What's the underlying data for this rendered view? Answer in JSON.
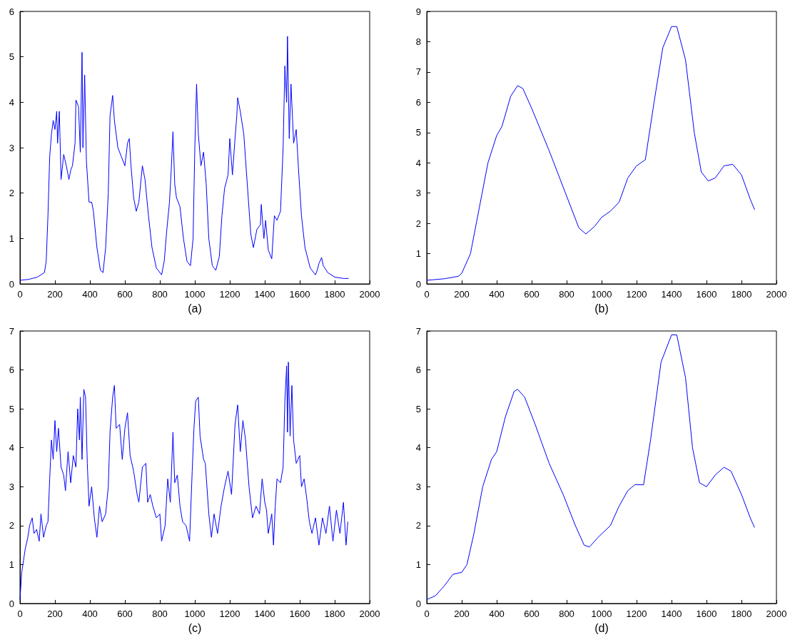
{
  "chart_data": [
    {
      "type": "line",
      "xlabel": "(a)",
      "color": "#0000ff",
      "xlim": [
        0,
        2000
      ],
      "xticks": [
        0,
        200,
        400,
        600,
        800,
        1000,
        1200,
        1400,
        1600,
        1800,
        2000
      ],
      "ylim": [
        0,
        6
      ],
      "yticks": [
        0,
        1,
        2,
        3,
        4,
        5,
        6
      ],
      "x": [
        0,
        50,
        100,
        140,
        150,
        160,
        170,
        180,
        190,
        200,
        210,
        215,
        225,
        235,
        250,
        265,
        280,
        290,
        300,
        315,
        320,
        335,
        345,
        355,
        360,
        370,
        380,
        395,
        410,
        420,
        440,
        460,
        475,
        490,
        505,
        515,
        525,
        530,
        540,
        560,
        580,
        600,
        615,
        625,
        635,
        650,
        665,
        680,
        700,
        715,
        735,
        755,
        780,
        810,
        825,
        840,
        855,
        865,
        875,
        885,
        895,
        915,
        935,
        955,
        975,
        990,
        1000,
        1010,
        1020,
        1035,
        1050,
        1065,
        1080,
        1100,
        1120,
        1140,
        1155,
        1170,
        1190,
        1200,
        1215,
        1230,
        1240,
        1245,
        1260,
        1280,
        1300,
        1320,
        1335,
        1355,
        1375,
        1380,
        1395,
        1405,
        1420,
        1440,
        1455,
        1470,
        1490,
        1505,
        1515,
        1525,
        1530,
        1540,
        1550,
        1565,
        1580,
        1595,
        1610,
        1630,
        1660,
        1690,
        1700,
        1710,
        1725,
        1735,
        1760,
        1800,
        1850,
        1880
      ],
      "values": [
        0.08,
        0.1,
        0.15,
        0.25,
        0.5,
        1.5,
        2.8,
        3.3,
        3.6,
        3.4,
        3.8,
        3.1,
        3.8,
        2.3,
        2.85,
        2.6,
        2.3,
        2.5,
        2.6,
        3.1,
        4.05,
        3.9,
        2.9,
        5.1,
        3.0,
        4.6,
        2.7,
        1.8,
        1.8,
        1.6,
        0.8,
        0.3,
        0.25,
        0.8,
        2.0,
        3.7,
        4.0,
        4.15,
        3.6,
        3.0,
        2.8,
        2.6,
        3.1,
        3.2,
        2.6,
        1.9,
        1.6,
        1.8,
        2.6,
        2.3,
        1.5,
        0.8,
        0.35,
        0.2,
        0.5,
        1.2,
        1.8,
        2.5,
        3.35,
        2.2,
        1.9,
        1.7,
        1.0,
        0.5,
        0.4,
        1.0,
        3.0,
        4.4,
        3.3,
        2.6,
        2.9,
        2.2,
        1.0,
        0.4,
        0.3,
        0.6,
        1.5,
        2.1,
        2.4,
        3.2,
        2.4,
        3.2,
        3.7,
        4.1,
        3.8,
        3.3,
        2.2,
        1.1,
        0.8,
        1.2,
        1.3,
        1.75,
        1.0,
        1.4,
        0.75,
        0.55,
        1.5,
        1.4,
        1.6,
        3.0,
        4.8,
        4.0,
        5.45,
        3.2,
        4.4,
        3.1,
        3.4,
        2.4,
        1.5,
        0.8,
        0.35,
        0.2,
        0.3,
        0.45,
        0.58,
        0.4,
        0.25,
        0.15,
        0.12,
        0.12
      ]
    },
    {
      "type": "line",
      "xlabel": "(b)",
      "color": "#0000ff",
      "xlim": [
        0,
        2000
      ],
      "xticks": [
        0,
        200,
        400,
        600,
        800,
        1000,
        1200,
        1400,
        1600,
        1800,
        2000
      ],
      "ylim": [
        0,
        9
      ],
      "yticks": [
        0,
        1,
        2,
        3,
        4,
        5,
        6,
        7,
        8,
        9
      ],
      "x": [
        0,
        100,
        180,
        200,
        250,
        300,
        350,
        400,
        430,
        480,
        520,
        550,
        600,
        700,
        800,
        870,
        910,
        960,
        1000,
        1050,
        1100,
        1150,
        1200,
        1250,
        1300,
        1350,
        1400,
        1430,
        1480,
        1530,
        1570,
        1610,
        1650,
        1700,
        1750,
        1800,
        1850,
        1875
      ],
      "values": [
        0.12,
        0.17,
        0.25,
        0.35,
        1.0,
        2.5,
        4.0,
        4.9,
        5.2,
        6.2,
        6.55,
        6.45,
        5.8,
        4.4,
        2.9,
        1.85,
        1.65,
        1.9,
        2.2,
        2.4,
        2.7,
        3.5,
        3.9,
        4.1,
        6.0,
        7.8,
        8.5,
        8.5,
        7.4,
        5.0,
        3.7,
        3.4,
        3.5,
        3.9,
        3.95,
        3.6,
        2.8,
        2.45
      ]
    },
    {
      "type": "line",
      "xlabel": "(c)",
      "color": "#0000ff",
      "xlim": [
        0,
        2000
      ],
      "xticks": [
        0,
        200,
        400,
        600,
        800,
        1000,
        1200,
        1400,
        1600,
        1800,
        2000
      ],
      "ylim": [
        0,
        7
      ],
      "yticks": [
        0,
        1,
        2,
        3,
        4,
        5,
        6,
        7
      ],
      "x": [
        0,
        10,
        20,
        30,
        45,
        55,
        70,
        80,
        95,
        110,
        120,
        135,
        150,
        160,
        170,
        180,
        190,
        200,
        210,
        220,
        235,
        250,
        260,
        275,
        290,
        305,
        320,
        330,
        340,
        345,
        355,
        365,
        375,
        385,
        395,
        410,
        425,
        440,
        455,
        470,
        490,
        505,
        515,
        530,
        540,
        550,
        570,
        585,
        600,
        615,
        630,
        650,
        670,
        680,
        700,
        720,
        730,
        745,
        760,
        780,
        800,
        810,
        830,
        845,
        860,
        875,
        885,
        900,
        915,
        930,
        950,
        970,
        985,
        995,
        1005,
        1020,
        1030,
        1050,
        1060,
        1080,
        1095,
        1110,
        1130,
        1150,
        1170,
        1190,
        1210,
        1230,
        1245,
        1260,
        1275,
        1290,
        1310,
        1330,
        1350,
        1370,
        1385,
        1400,
        1410,
        1420,
        1440,
        1450,
        1460,
        1470,
        1490,
        1505,
        1515,
        1525,
        1530,
        1535,
        1545,
        1555,
        1565,
        1580,
        1600,
        1610,
        1625,
        1640,
        1655,
        1670,
        1690,
        1710,
        1730,
        1750,
        1770,
        1790,
        1810,
        1830,
        1850,
        1865,
        1875
      ],
      "values": [
        0.1,
        0.8,
        1.1,
        1.4,
        1.7,
        2.0,
        2.2,
        1.8,
        1.9,
        1.6,
        2.3,
        1.7,
        2.0,
        2.1,
        3.2,
        4.2,
        3.7,
        4.7,
        3.9,
        4.5,
        3.5,
        3.3,
        2.9,
        3.9,
        3.1,
        3.8,
        3.5,
        5.0,
        4.2,
        5.3,
        3.7,
        5.5,
        5.3,
        3.6,
        2.5,
        3.0,
        2.2,
        1.7,
        2.5,
        2.1,
        2.3,
        3.0,
        4.4,
        5.3,
        5.6,
        4.5,
        4.6,
        3.7,
        4.5,
        4.9,
        3.8,
        3.4,
        2.8,
        2.6,
        3.5,
        3.6,
        2.6,
        2.8,
        2.5,
        2.2,
        2.3,
        1.6,
        2.0,
        3.2,
        2.6,
        4.4,
        3.1,
        3.3,
        2.5,
        2.1,
        2.0,
        1.6,
        3.4,
        4.5,
        5.2,
        5.3,
        4.3,
        3.7,
        3.6,
        2.3,
        1.7,
        2.3,
        1.8,
        2.5,
        3.0,
        3.4,
        2.8,
        4.6,
        5.1,
        3.9,
        4.7,
        4.2,
        3.0,
        2.2,
        2.5,
        2.3,
        3.2,
        2.6,
        2.4,
        1.8,
        2.3,
        1.5,
        2.5,
        3.2,
        3.1,
        3.5,
        5.2,
        6.1,
        4.4,
        6.2,
        4.3,
        5.6,
        4.2,
        3.6,
        3.8,
        3.0,
        3.2,
        2.7,
        2.1,
        1.8,
        2.2,
        1.5,
        2.2,
        1.8,
        2.5,
        1.6,
        2.4,
        1.8,
        2.6,
        1.5,
        2.1
      ]
    },
    {
      "type": "line",
      "xlabel": "(d)",
      "color": "#0000ff",
      "xlim": [
        0,
        2000
      ],
      "xticks": [
        0,
        200,
        400,
        600,
        800,
        1000,
        1200,
        1400,
        1600,
        1800,
        2000
      ],
      "ylim": [
        0,
        7
      ],
      "yticks": [
        0,
        1,
        2,
        3,
        4,
        5,
        6,
        7
      ],
      "x": [
        0,
        50,
        100,
        150,
        200,
        230,
        270,
        320,
        370,
        400,
        450,
        500,
        520,
        560,
        620,
        700,
        780,
        850,
        900,
        930,
        980,
        1050,
        1100,
        1150,
        1190,
        1240,
        1280,
        1340,
        1400,
        1430,
        1480,
        1520,
        1560,
        1600,
        1650,
        1700,
        1740,
        1800,
        1850,
        1875
      ],
      "values": [
        0.1,
        0.2,
        0.45,
        0.75,
        0.8,
        1.0,
        1.8,
        3.0,
        3.7,
        3.9,
        4.8,
        5.45,
        5.5,
        5.3,
        4.6,
        3.6,
        2.8,
        2.0,
        1.5,
        1.45,
        1.7,
        2.0,
        2.5,
        2.9,
        3.05,
        3.05,
        4.2,
        6.2,
        6.9,
        6.9,
        5.8,
        4.0,
        3.1,
        3.0,
        3.3,
        3.5,
        3.4,
        2.8,
        2.2,
        1.95
      ]
    }
  ]
}
